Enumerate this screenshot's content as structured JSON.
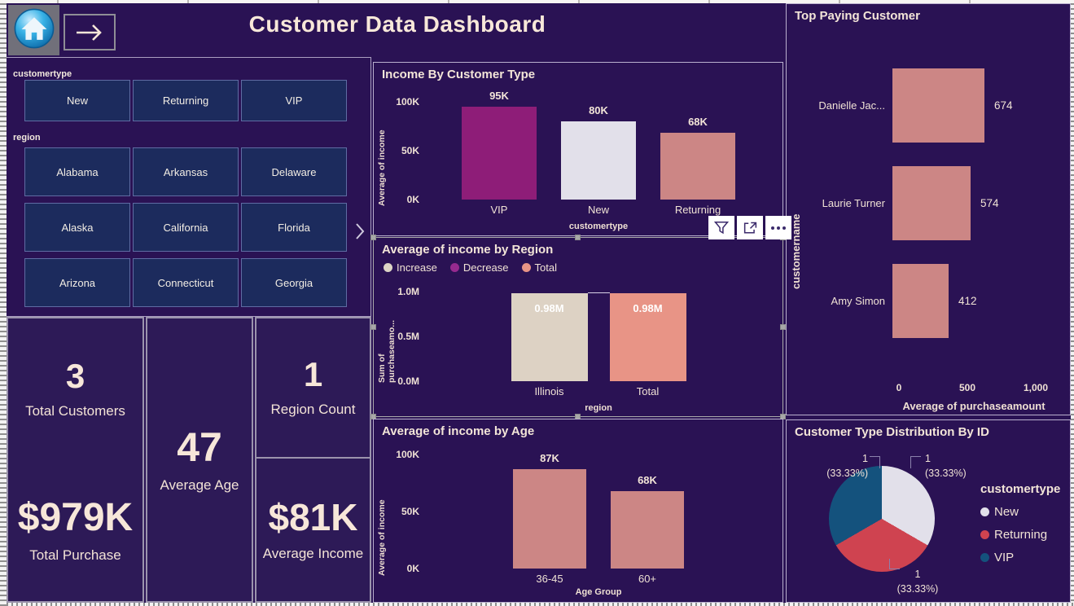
{
  "header": {
    "title": "Customer Data Dashboard"
  },
  "nav": {
    "home_icon": "home-icon",
    "arrow_icon": "arrow-right-icon"
  },
  "slicers": {
    "customertype": {
      "label": "customertype",
      "options": [
        "New",
        "Returning",
        "VIP"
      ]
    },
    "region": {
      "label": "region",
      "options": [
        "Alabama",
        "Arkansas",
        "Delaware",
        "Alaska",
        "California",
        "Florida",
        "Arizona",
        "Connecticut",
        "Georgia"
      ],
      "more_icon": "chevron-right-icon"
    }
  },
  "kpis": [
    {
      "value": "3",
      "label": "Total Customers"
    },
    {
      "value": "$979K",
      "label": "Total Purchase"
    },
    {
      "value": "47",
      "label": "Average Age"
    },
    {
      "value": "1",
      "label": "Region Count"
    },
    {
      "value": "$81K",
      "label": "Average Income"
    }
  ],
  "visual_header": {
    "icons": [
      "filter-icon",
      "focus-mode-icon",
      "more-options-icon"
    ]
  },
  "colors": {
    "canvas_bg": "#2a1254",
    "cream_text": "#f6e6d8",
    "slicer_bg": "#1c2b5d"
  },
  "chart_data": [
    {
      "id": "income_by_customer_type",
      "type": "bar",
      "title": "Income By Customer Type",
      "categories": [
        "VIP",
        "New",
        "Returning"
      ],
      "values": [
        95000,
        80000,
        68000
      ],
      "data_labels": [
        "95K",
        "80K",
        "68K"
      ],
      "bar_colors": [
        "#8e1d78",
        "#e2e0ea",
        "#cc8685"
      ],
      "xlabel": "customertype",
      "ylabel": "Average of income",
      "yticks": [
        "100K",
        "50K",
        "0K"
      ],
      "ylim": [
        0,
        100000
      ],
      "grid": false
    },
    {
      "id": "avg_income_by_region",
      "type": "bar",
      "subtype": "waterfall",
      "title": "Average of income by Region",
      "legend": [
        {
          "label": "Increase",
          "color": "#ddd5c6"
        },
        {
          "label": "Decrease",
          "color": "#962a8f"
        },
        {
          "label": "Total",
          "color": "#e89486"
        }
      ],
      "categories": [
        "Illinois",
        "Total"
      ],
      "values": [
        980000,
        980000
      ],
      "data_labels": [
        "0.98M",
        "0.98M"
      ],
      "bar_colors": [
        "#ddd2c4",
        "#e89486"
      ],
      "xlabel": "region",
      "ylabel": "Sum of purchaseamo...",
      "yticks": [
        "1.0M",
        "0.5M",
        "0.0M"
      ],
      "ylim": [
        0,
        1000000
      ],
      "label_inside": true,
      "connector": true,
      "legend_position": "top-left"
    },
    {
      "id": "avg_income_by_age",
      "type": "bar",
      "title": "Average of income by Age",
      "categories": [
        "36-45",
        "60+"
      ],
      "values": [
        87000,
        68000
      ],
      "data_labels": [
        "87K",
        "68K"
      ],
      "bar_colors": [
        "#cc8685",
        "#cc8685"
      ],
      "xlabel": "Age Group",
      "ylabel": "Average of income",
      "yticks": [
        "100K",
        "50K",
        "0K"
      ],
      "ylim": [
        0,
        100000
      ],
      "grid": false
    },
    {
      "id": "top_paying_customer",
      "type": "bar",
      "subtype": "horizontal",
      "title": "Top Paying Customer",
      "categories": [
        "Danielle Jac...",
        "Laurie Turner",
        "Amy Simon"
      ],
      "values": [
        674,
        574,
        412
      ],
      "data_labels": [
        "674",
        "574",
        "412"
      ],
      "bar_color": "#cc8685",
      "xlabel": "Average of purchaseamount",
      "ylabel": "customername",
      "xticks": [
        "0",
        "500",
        "1,000"
      ],
      "xlim": [
        0,
        1000
      ]
    },
    {
      "id": "customer_type_distribution_by_id",
      "type": "pie",
      "title": "Customer Type Distribution By ID",
      "legend_title": "customertype",
      "slices": [
        {
          "label": "New",
          "value": 1,
          "display": "1",
          "pct": "(33.33%)",
          "color": "#e2e0ea"
        },
        {
          "label": "Returning",
          "value": 1,
          "display": "1",
          "pct": "(33.33%)",
          "color": "#cf4350"
        },
        {
          "label": "VIP",
          "value": 1,
          "display": "1",
          "pct": "(33.33%)",
          "color": "#14527d"
        }
      ]
    }
  ]
}
